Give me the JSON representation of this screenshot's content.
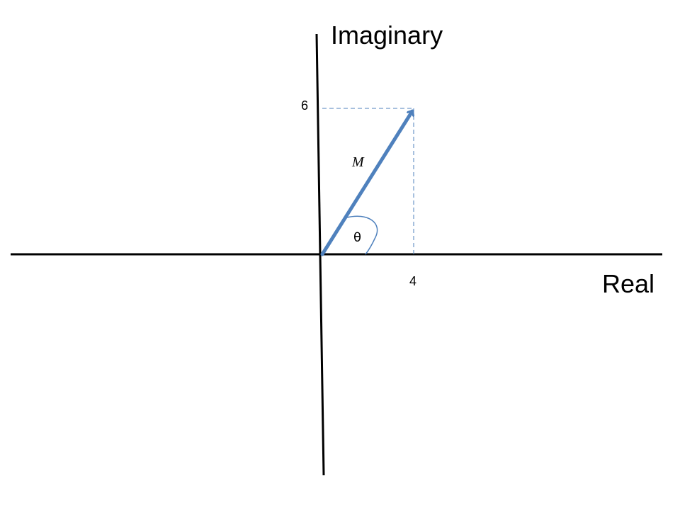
{
  "axes": {
    "real_label": "Real",
    "imaginary_label": "Imaginary"
  },
  "point": {
    "real": 4,
    "imaginary": 6,
    "real_label": "4",
    "imaginary_label": "6"
  },
  "vector": {
    "magnitude_label": "M",
    "angle_label": "θ"
  },
  "colors": {
    "axis": "#000000",
    "vector": "#4f81bd",
    "guide": "#4f81bd",
    "angle_arc": "#4f81bd"
  }
}
